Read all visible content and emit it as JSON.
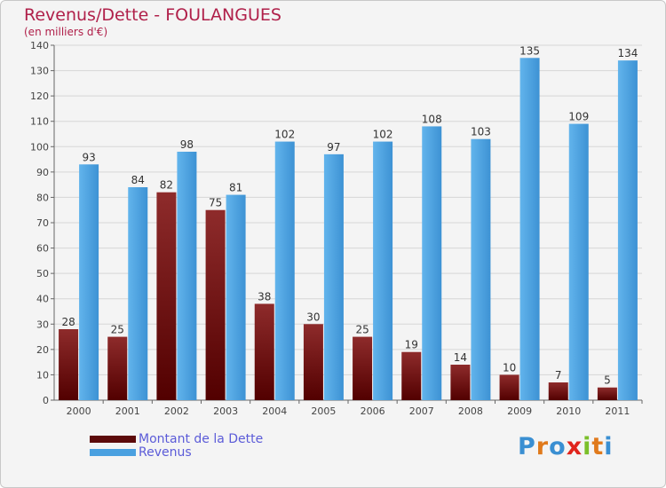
{
  "title": "Revenus/Dette - FOULANGUES",
  "subtitle": "(en milliers d'€)",
  "logo": "Proxiti",
  "colors": {
    "title": "#b0204a",
    "dette_top": "#8b2a2a",
    "dette_bottom": "#5a0000",
    "revenus_light": "#5aaee8",
    "revenus_dark": "#3a8fd2",
    "legend_text": "#5b5bd8",
    "grid": "#d6d6d6",
    "axis_text": "#444444"
  },
  "chart_data": {
    "type": "bar",
    "title": "Revenus/Dette - FOULANGUES",
    "subtitle": "(en milliers d'€)",
    "xlabel": "",
    "ylabel": "",
    "ylim": [
      0,
      140
    ],
    "yticks": [
      0,
      10,
      20,
      30,
      40,
      50,
      60,
      70,
      80,
      90,
      100,
      110,
      120,
      130,
      140
    ],
    "grid": true,
    "legend_position": "bottom-left",
    "categories": [
      "2000",
      "2001",
      "2002",
      "2003",
      "2004",
      "2005",
      "2006",
      "2007",
      "2008",
      "2009",
      "2010",
      "2011"
    ],
    "series": [
      {
        "name": "Montant de la Dette",
        "color": "#6b0f0f",
        "values": [
          28,
          25,
          82,
          75,
          38,
          30,
          25,
          19,
          14,
          10,
          7,
          5
        ]
      },
      {
        "name": "Revenus",
        "color": "#4aa0e0",
        "values": [
          93,
          84,
          98,
          81,
          102,
          97,
          102,
          108,
          103,
          135,
          109,
          134
        ]
      }
    ]
  }
}
